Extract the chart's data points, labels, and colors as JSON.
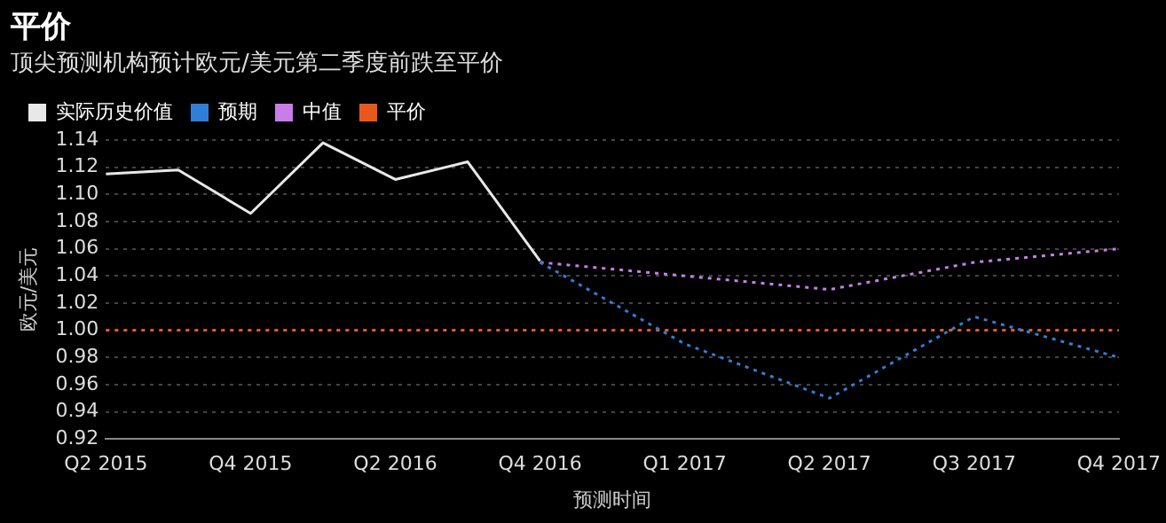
{
  "chart_data": {
    "type": "line",
    "title": "平价",
    "subtitle": "顶尖预测机构预计欧元/美元第二季度前跌至平价",
    "xlabel": "预测时间",
    "ylabel": "欧元/美元",
    "categories": [
      "Q2 2015",
      null,
      "Q4 2015",
      null,
      "Q2 2016",
      null,
      "Q4 2016",
      null,
      "Q1 2017",
      null,
      "Q2 2017",
      null,
      "Q3 2017",
      null,
      "Q4 2017"
    ],
    "series": [
      {
        "name": "实际历史价值",
        "color": "#e8e8e8",
        "line_style": "solid",
        "values": [
          1.115,
          1.118,
          1.086,
          1.138,
          1.111,
          1.124,
          1.051,
          null,
          null,
          null,
          null,
          null,
          null,
          null,
          null
        ]
      },
      {
        "name": "预期",
        "color": "#2f7fd8",
        "line_style": "dotted",
        "values": [
          null,
          null,
          null,
          null,
          null,
          null,
          1.05,
          null,
          0.99,
          null,
          0.95,
          null,
          1.01,
          null,
          0.98
        ]
      },
      {
        "name": "中值",
        "color": "#c77ee8",
        "line_style": "dotted",
        "values": [
          null,
          null,
          null,
          null,
          null,
          null,
          1.05,
          null,
          1.04,
          null,
          1.03,
          null,
          1.05,
          null,
          1.06
        ]
      },
      {
        "name": "平价",
        "color": "#e8581c",
        "line_style": "dotted",
        "values": [
          1,
          1,
          1,
          1,
          1,
          1,
          1,
          1,
          1,
          1,
          1,
          1,
          1,
          1,
          1
        ]
      }
    ],
    "ylim": [
      0.92,
      1.14
    ],
    "yticks": [
      {
        "value": 0.92,
        "label": "0.92"
      },
      {
        "value": 0.94,
        "label": "0.94"
      },
      {
        "value": 0.96,
        "label": "0.96"
      },
      {
        "value": 0.98,
        "label": "0.98"
      },
      {
        "value": 1.0,
        "label": "1.00"
      },
      {
        "value": 1.02,
        "label": "1.02"
      },
      {
        "value": 1.04,
        "label": "1.04"
      },
      {
        "value": 1.06,
        "label": "1.06"
      },
      {
        "value": 1.08,
        "label": "1.08"
      },
      {
        "value": 1.1,
        "label": "1.10"
      },
      {
        "value": 1.12,
        "label": "1.12"
      },
      {
        "value": 1.14,
        "label": "1.14"
      }
    ],
    "grid": "y",
    "legend": "top left",
    "marker": "none"
  }
}
